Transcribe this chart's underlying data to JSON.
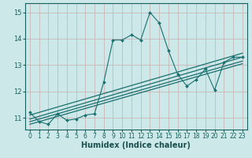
{
  "xlabel": "Humidex (Indice chaleur)",
  "bg_color": "#cce8e8",
  "grid_color": "#b0d0d0",
  "line_color": "#1a7070",
  "xlim": [
    -0.5,
    23.5
  ],
  "ylim": [
    10.55,
    15.35
  ],
  "yticks": [
    11,
    12,
    13,
    14,
    15
  ],
  "xticks": [
    0,
    1,
    2,
    3,
    4,
    5,
    6,
    7,
    8,
    9,
    10,
    11,
    12,
    13,
    14,
    15,
    16,
    17,
    18,
    19,
    20,
    21,
    22,
    23
  ],
  "main_x": [
    0,
    1,
    2,
    3,
    4,
    5,
    6,
    7,
    8,
    9,
    10,
    11,
    12,
    13,
    14,
    15,
    16,
    17,
    18,
    19,
    20,
    21,
    22,
    23
  ],
  "main_y": [
    11.2,
    10.85,
    10.75,
    11.15,
    10.9,
    10.95,
    11.1,
    11.15,
    12.35,
    13.95,
    13.95,
    14.15,
    13.95,
    15.0,
    14.6,
    13.55,
    12.65,
    12.2,
    12.45,
    12.85,
    12.05,
    13.1,
    13.3,
    13.3
  ],
  "reg_lines": [
    {
      "x0": 0,
      "y0": 10.75,
      "x1": 23,
      "y1": 13.05
    },
    {
      "x0": 0,
      "y0": 10.85,
      "x1": 23,
      "y1": 13.15
    },
    {
      "x0": 0,
      "y0": 10.95,
      "x1": 23,
      "y1": 13.3
    },
    {
      "x0": 0,
      "y0": 11.1,
      "x1": 23,
      "y1": 13.45
    }
  ],
  "xlabel_fontsize": 7,
  "tick_fontsize": 5.5,
  "ytick_fontsize": 6
}
